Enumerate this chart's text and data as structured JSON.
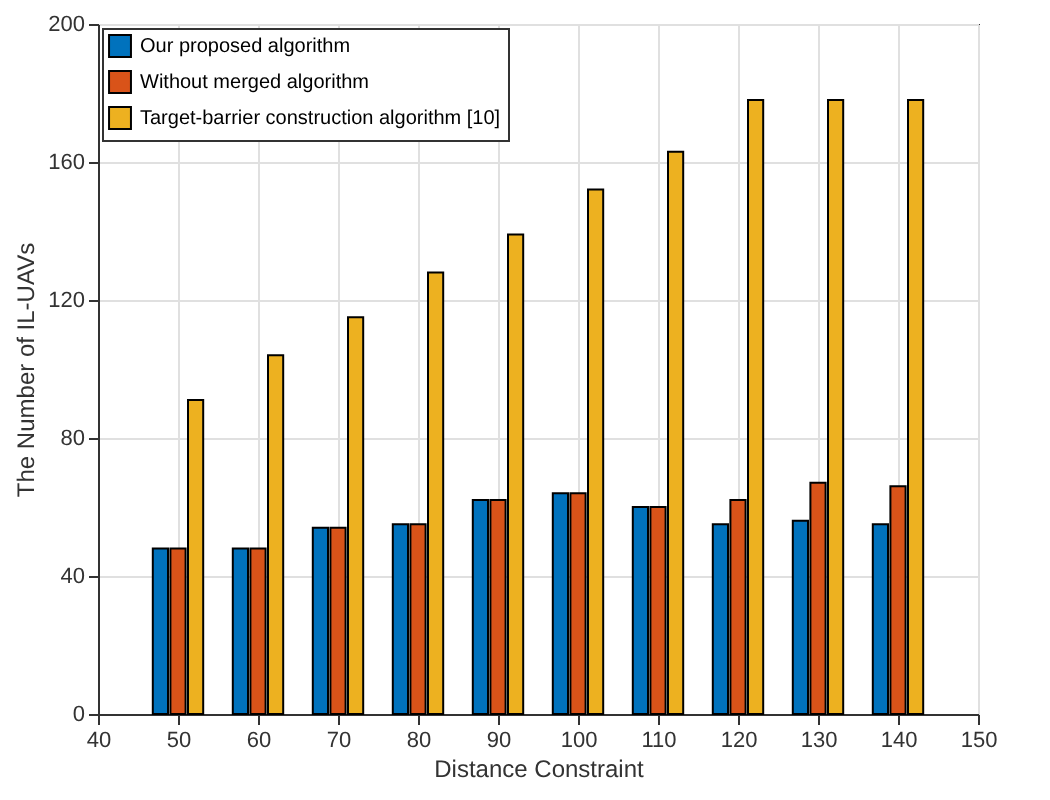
{
  "chart_data": {
    "type": "bar",
    "xlabel": "Distance Constraint",
    "ylabel": "The Number of IL-UAVs",
    "x": [
      50,
      60,
      70,
      80,
      90,
      100,
      110,
      120,
      130,
      140
    ],
    "series": [
      {
        "name": "Our proposed algorithm",
        "color": "#0072bd",
        "values": [
          48,
          48,
          54,
          55,
          62,
          64,
          60,
          55,
          56,
          55
        ]
      },
      {
        "name": "Without merged algorithm",
        "color": "#d95319",
        "values": [
          48,
          48,
          54,
          55,
          62,
          64,
          60,
          62,
          67,
          66
        ]
      },
      {
        "name": "Target-barrier construction algorithm [10]",
        "color": "#edb120",
        "values": [
          91,
          104,
          115,
          128,
          139,
          152,
          163,
          178,
          178,
          178
        ]
      }
    ],
    "xlim": [
      40,
      150
    ],
    "xticks": [
      40,
      50,
      60,
      70,
      80,
      90,
      100,
      110,
      120,
      130,
      140,
      150
    ],
    "ylim": [
      0,
      200
    ],
    "yticks": [
      0,
      40,
      80,
      120,
      160,
      200
    ],
    "grid": true,
    "legend": "top left"
  }
}
